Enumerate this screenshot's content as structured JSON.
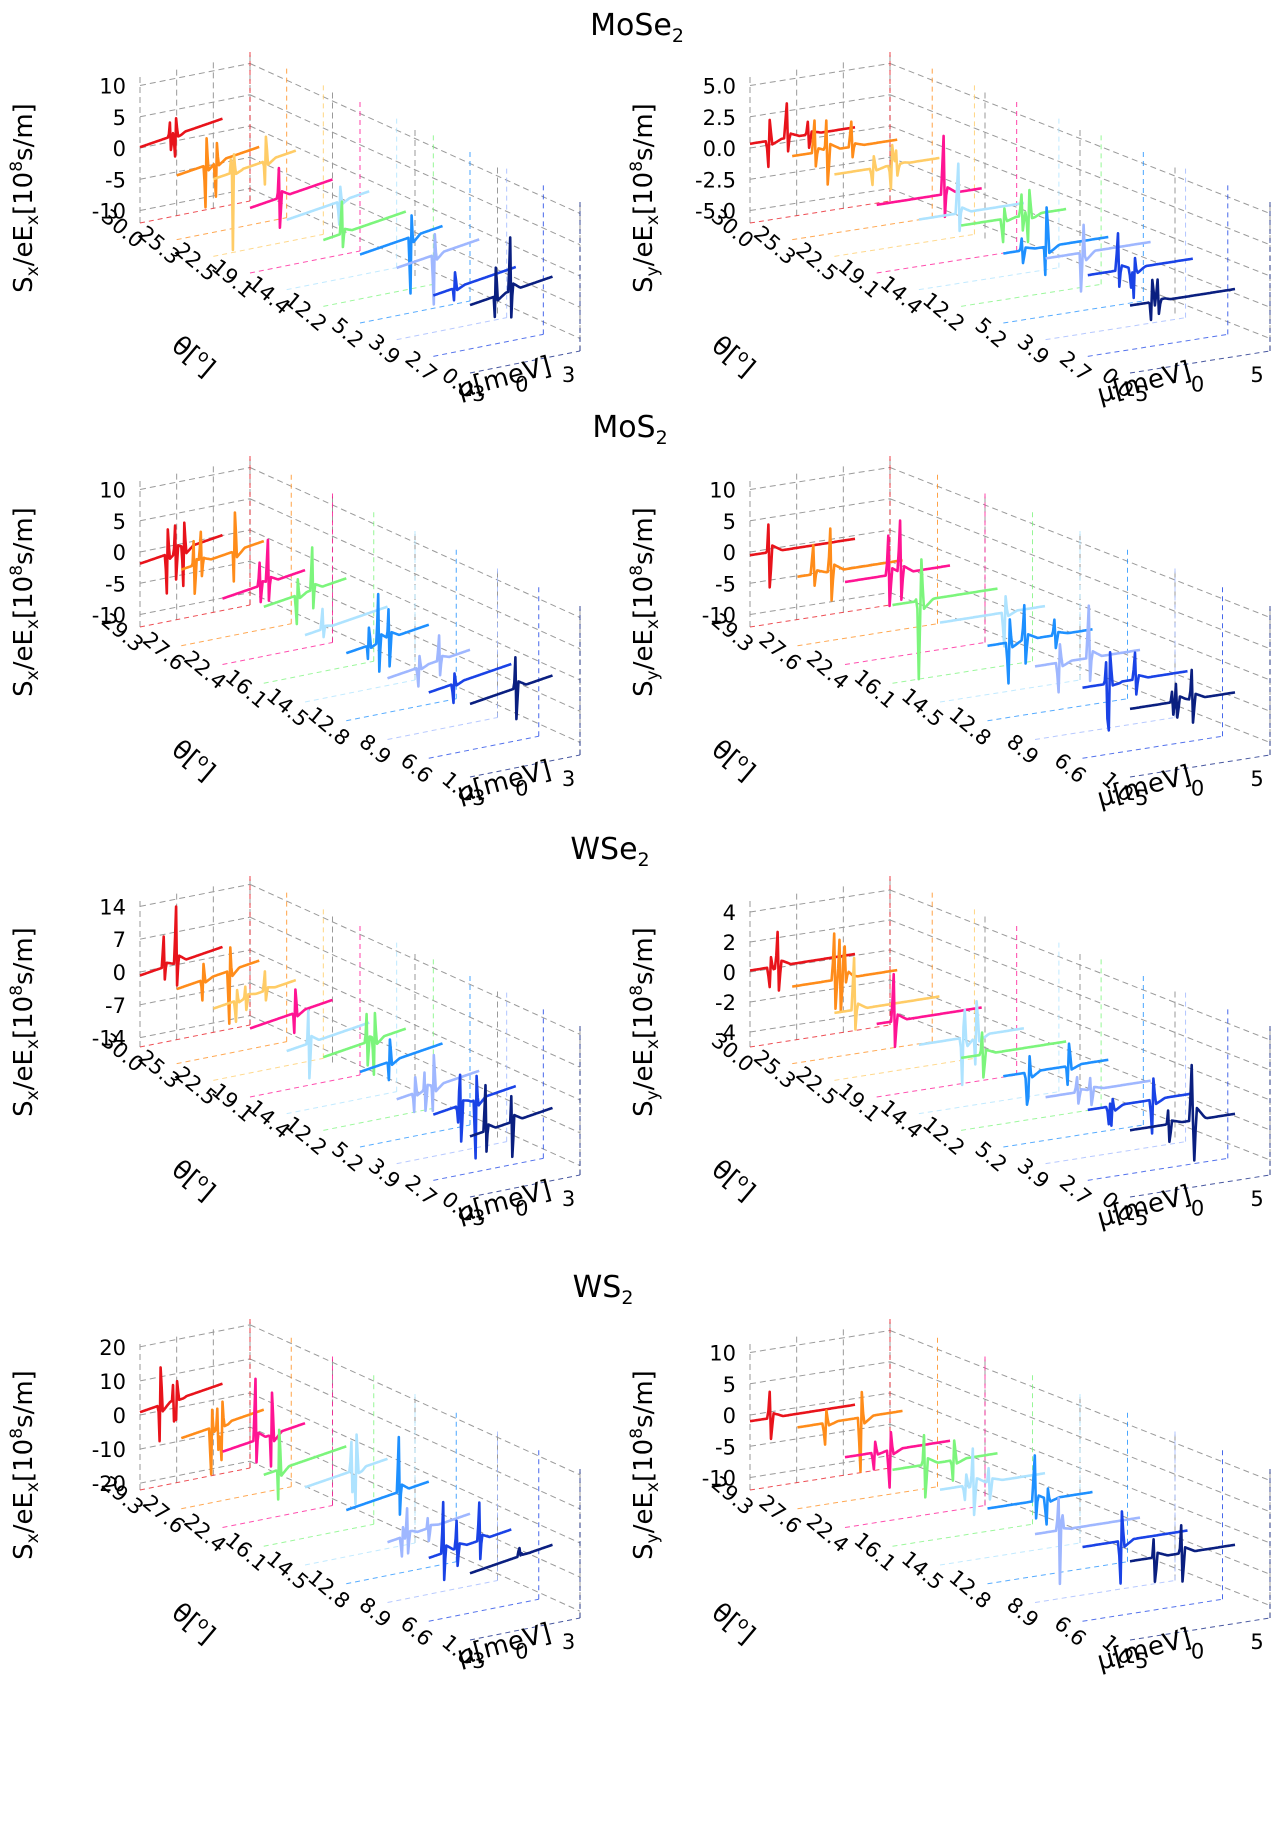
{
  "figure": {
    "unit_label": "10",
    "unit_exp": "8",
    "unit_rest": "s/m]",
    "theta_label": "θ[",
    "theta_deg": "o",
    "theta_close": "]",
    "mu_label": "μ[meV]"
  },
  "chart_data": [
    {
      "type": "line",
      "material": "MoSe",
      "material_sub": "2",
      "component": "x",
      "zticks": [
        "10",
        "5",
        "0",
        "-5",
        "-10"
      ],
      "zlim": [
        -12,
        12
      ],
      "thetas": [
        "30.0",
        "25.3",
        "22.5",
        "19.1",
        "14.4",
        "12.2",
        "5.2",
        "3.9",
        "2.7",
        "0.0"
      ],
      "muticks": [
        "-3",
        "0",
        "3"
      ],
      "mulim": [
        -4,
        4
      ],
      "colors": [
        "#e8131b",
        "#ff8c1a",
        "#ffcc66",
        "#ff1493",
        "#aee3ff",
        "#7cf57c",
        "#1e90ff",
        "#9fb7ff",
        "#1a43e6",
        "#0a1f80"
      ]
    },
    {
      "type": "line",
      "material": "MoSe",
      "material_sub": "2",
      "component": "y",
      "zticks": [
        "5.0",
        "2.5",
        "0.0",
        "-2.5",
        "-5.0"
      ],
      "zlim": [
        -6,
        6
      ],
      "thetas": [
        "30.0",
        "25.3",
        "22.5",
        "19.1",
        "14.4",
        "12.2",
        "5.2",
        "3.9",
        "2.7",
        "0.0"
      ],
      "muticks": [
        "-5",
        "0",
        "5"
      ],
      "mulim": [
        -6,
        6
      ],
      "colors": [
        "#e8131b",
        "#ff8c1a",
        "#ffcc66",
        "#ff1493",
        "#aee3ff",
        "#7cf57c",
        "#1e90ff",
        "#9fb7ff",
        "#1a43e6",
        "#0a1f80"
      ]
    },
    {
      "type": "line",
      "material": "MoS",
      "material_sub": "2",
      "component": "x",
      "zticks": [
        "10",
        "5",
        "0",
        "-5",
        "-10"
      ],
      "zlim": [
        -12,
        12
      ],
      "thetas": [
        "29.3",
        "27.6",
        "22.4",
        "16.1",
        "14.5",
        "12.8",
        "8.9",
        "6.6",
        "1.0"
      ],
      "muticks": [
        "-3",
        "0",
        "3"
      ],
      "mulim": [
        -4,
        4
      ],
      "colors": [
        "#e8131b",
        "#ff8c1a",
        "#ff1493",
        "#7cf57c",
        "#aee3ff",
        "#1e90ff",
        "#9fb7ff",
        "#1a43e6",
        "#0a1f80"
      ]
    },
    {
      "type": "line",
      "material": "MoS",
      "material_sub": "2",
      "component": "y",
      "zticks": [
        "10",
        "5",
        "0",
        "-5",
        "-10"
      ],
      "zlim": [
        -12,
        12
      ],
      "thetas": [
        "29.3",
        "27.6",
        "22.4",
        "16.1",
        "14.5",
        "12.8",
        "8.9",
        "6.6",
        "1.0"
      ],
      "muticks": [
        "-5",
        "0",
        "5"
      ],
      "mulim": [
        -6,
        6
      ],
      "colors": [
        "#e8131b",
        "#ff8c1a",
        "#ff1493",
        "#7cf57c",
        "#aee3ff",
        "#1e90ff",
        "#9fb7ff",
        "#1a43e6",
        "#0a1f80"
      ]
    },
    {
      "type": "line",
      "material": "WSe",
      "material_sub": "2",
      "component": "x",
      "zticks": [
        "14",
        "7",
        "0",
        "-7",
        "-14"
      ],
      "zlim": [
        -16,
        16
      ],
      "thetas": [
        "30.0",
        "25.3",
        "22.5",
        "19.1",
        "14.4",
        "12.2",
        "5.2",
        "3.9",
        "2.7",
        "0.0"
      ],
      "muticks": [
        "-3",
        "0",
        "3"
      ],
      "mulim": [
        -4,
        4
      ],
      "colors": [
        "#e8131b",
        "#ff8c1a",
        "#ffcc66",
        "#ff1493",
        "#aee3ff",
        "#7cf57c",
        "#1e90ff",
        "#9fb7ff",
        "#1a43e6",
        "#0a1f80"
      ]
    },
    {
      "type": "line",
      "material": "WSe",
      "material_sub": "2",
      "component": "y",
      "zticks": [
        "4",
        "2",
        "0",
        "-2",
        "-4"
      ],
      "zlim": [
        -5,
        5
      ],
      "thetas": [
        "30.0",
        "25.3",
        "22.5",
        "19.1",
        "14.4",
        "12.2",
        "5.2",
        "3.9",
        "2.7",
        "0.0"
      ],
      "muticks": [
        "-5",
        "0",
        "5"
      ],
      "mulim": [
        -6,
        6
      ],
      "colors": [
        "#e8131b",
        "#ff8c1a",
        "#ffcc66",
        "#ff1493",
        "#aee3ff",
        "#7cf57c",
        "#1e90ff",
        "#9fb7ff",
        "#1a43e6",
        "#0a1f80"
      ]
    },
    {
      "type": "line",
      "material": "WS",
      "material_sub": "2",
      "component": "x",
      "zticks": [
        "20",
        "10",
        "0",
        "-10",
        "-20"
      ],
      "zlim": [
        -22,
        22
      ],
      "thetas": [
        "29.3",
        "27.6",
        "22.4",
        "16.1",
        "14.5",
        "12.8",
        "8.9",
        "6.6",
        "1.0"
      ],
      "muticks": [
        "-3",
        "0",
        "3"
      ],
      "mulim": [
        -4,
        4
      ],
      "colors": [
        "#e8131b",
        "#ff8c1a",
        "#ff1493",
        "#7cf57c",
        "#aee3ff",
        "#1e90ff",
        "#9fb7ff",
        "#1a43e6",
        "#0a1f80"
      ]
    },
    {
      "type": "line",
      "material": "WS",
      "material_sub": "2",
      "component": "y",
      "zticks": [
        "10",
        "5",
        "0",
        "-5",
        "-10"
      ],
      "zlim": [
        -12,
        12
      ],
      "thetas": [
        "29.3",
        "27.6",
        "22.4",
        "16.1",
        "14.5",
        "12.8",
        "8.9",
        "6.6",
        "1.0"
      ],
      "muticks": [
        "-5",
        "0",
        "5"
      ],
      "mulim": [
        -6,
        6
      ],
      "colors": [
        "#e8131b",
        "#ff8c1a",
        "#ff1493",
        "#7cf57c",
        "#aee3ff",
        "#1e90ff",
        "#9fb7ff",
        "#1a43e6",
        "#0a1f80"
      ]
    }
  ]
}
